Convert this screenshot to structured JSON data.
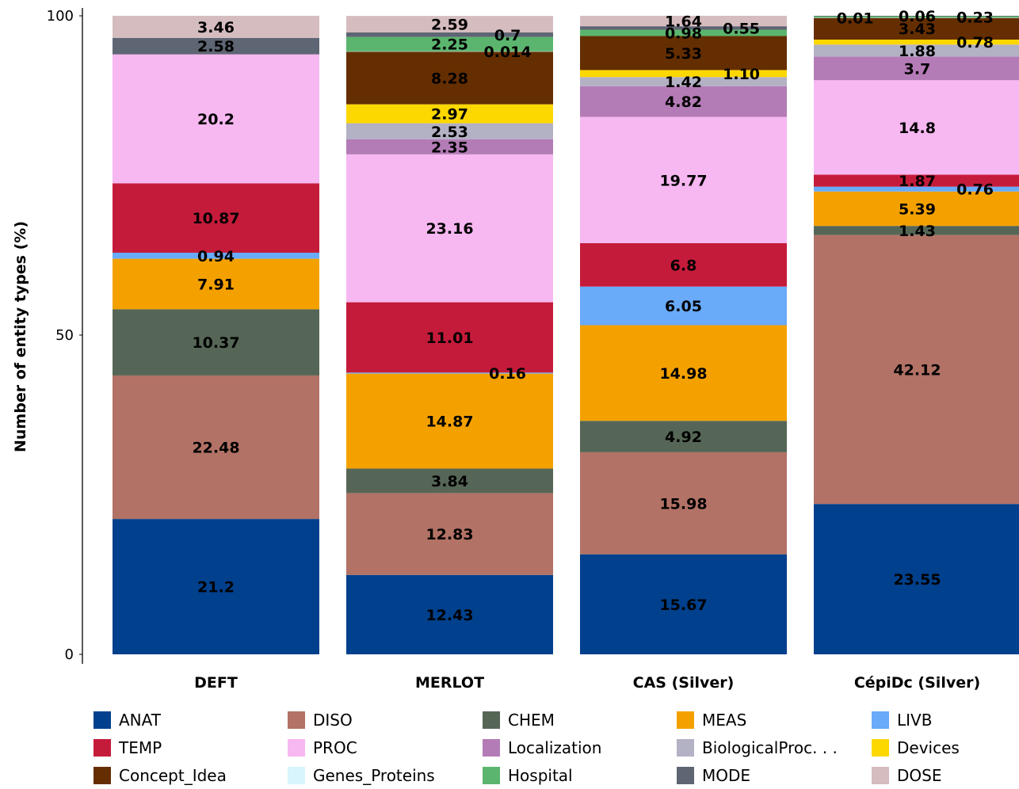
{
  "chart_data": {
    "type": "bar",
    "stacked": true,
    "title": "",
    "xlabel": "",
    "ylabel": "Number of entity types (%)",
    "ylim": [
      0,
      100
    ],
    "yticks": [
      0,
      50,
      100
    ],
    "legend_position": "bottom",
    "grid": false,
    "categories": [
      "DEFT",
      "MERLOT",
      "CAS (Silver)",
      "CépiDc (Silver)"
    ],
    "series": [
      {
        "name": "ANAT",
        "color": "#00408c",
        "values": [
          21.2,
          12.43,
          15.67,
          23.55
        ],
        "labels": [
          "21.2",
          "12.43",
          "15.67",
          "23.55"
        ]
      },
      {
        "name": "DISO",
        "color": "#b27265",
        "values": [
          22.48,
          12.83,
          15.98,
          42.12
        ],
        "labels": [
          "22.48",
          "12.83",
          "15.98",
          "42.12"
        ]
      },
      {
        "name": "CHEM",
        "color": "#566656",
        "values": [
          10.37,
          3.84,
          4.92,
          1.43
        ],
        "labels": [
          "10.37",
          "3.84",
          "4.92",
          "1.43"
        ]
      },
      {
        "name": "MEAS",
        "color": "#f4a100",
        "values": [
          7.91,
          14.87,
          14.98,
          5.39
        ],
        "labels": [
          "7.91",
          "14.87",
          "14.98",
          "5.39"
        ]
      },
      {
        "name": "LIVB",
        "color": "#69aaf9",
        "values": [
          0.94,
          0.16,
          6.05,
          0.76
        ],
        "labels": [
          "0.94",
          "0.16",
          "6.05",
          "0.76"
        ]
      },
      {
        "name": "TEMP",
        "color": "#c51b3a",
        "values": [
          10.87,
          11.01,
          6.8,
          1.87
        ],
        "labels": [
          "10.87",
          "11.01",
          "6.8",
          "1.87"
        ]
      },
      {
        "name": "PROC",
        "color": "#f7b7f1",
        "values": [
          20.2,
          23.16,
          19.77,
          14.8
        ],
        "labels": [
          "20.2",
          "23.16",
          "19.77",
          "14.8"
        ]
      },
      {
        "name": "Localization",
        "color": "#b47cb6",
        "values": [
          0,
          2.35,
          4.82,
          3.7
        ],
        "labels": [
          "",
          "2.35",
          "4.82",
          "3.7"
        ]
      },
      {
        "name": "BiologicalProc. . .",
        "color": "#b3b1c4",
        "values": [
          0,
          2.53,
          1.42,
          1.88
        ],
        "labels": [
          "",
          "2.53",
          "1.42",
          "1.88"
        ]
      },
      {
        "name": "Devices",
        "color": "#fdd700",
        "values": [
          0,
          2.97,
          1.1,
          0.78
        ],
        "labels": [
          "",
          "2.97",
          "1.10",
          "0.78"
        ]
      },
      {
        "name": "Concept_Idea",
        "color": "#652e00",
        "values": [
          0,
          8.28,
          5.33,
          3.43
        ],
        "labels": [
          "",
          "8.28",
          "5.33",
          "3.43"
        ]
      },
      {
        "name": "Genes_Proteins",
        "color": "#d8f4fc",
        "values": [
          0,
          0.014,
          0,
          0.01
        ],
        "labels": [
          "",
          "0.014",
          "",
          "0.01"
        ]
      },
      {
        "name": "Hospital",
        "color": "#5bb56e",
        "values": [
          0,
          2.25,
          0.98,
          0.23
        ],
        "labels": [
          "",
          "2.25",
          "0.98",
          "0.23"
        ]
      },
      {
        "name": "MODE",
        "color": "#5e6573",
        "values": [
          2.58,
          0.7,
          0.55,
          0.06
        ],
        "labels": [
          "2.58",
          "0.7",
          "0.55",
          "0.06"
        ]
      },
      {
        "name": "DOSE",
        "color": "#d5bcbf",
        "values": [
          3.46,
          2.59,
          1.64,
          0
        ],
        "labels": [
          "3.46",
          "2.59",
          "1.64",
          ""
        ]
      }
    ],
    "label_offsets": {
      "Devices|CAS (Silver)": "right",
      "LIVB|MERLOT": "right",
      "LIVB|CépiDc (Silver)": "right",
      "Genes_Proteins|MERLOT": "right",
      "Genes_Proteins|CépiDc (Silver)": "left",
      "Hospital|CépiDc (Silver)": "right",
      "MODE|MERLOT": "right",
      "MODE|CAS (Silver)": "right",
      "Devices|CépiDc (Silver)": "right"
    }
  },
  "legend_icon": "square-swatch"
}
